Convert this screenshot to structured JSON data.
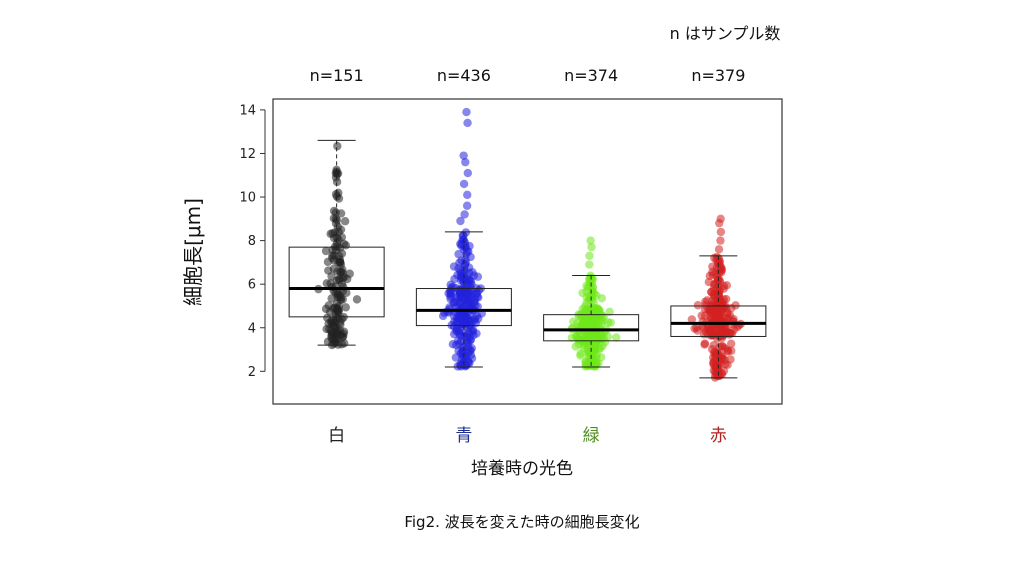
{
  "note": "n はサンプル数",
  "caption": "Fig2. 波長を変えた時の細胞長変化",
  "chart_data": {
    "type": "box",
    "xlabel": "培養時の光色",
    "ylabel": "細胞長[μm]",
    "ylim": [
      0.5,
      14.5
    ],
    "yticks": [
      2,
      4,
      6,
      8,
      10,
      12,
      14
    ],
    "groups": [
      {
        "label": "白",
        "n_label": "n=151",
        "color": "#222222",
        "min": 3.2,
        "q1": 4.5,
        "median": 5.8,
        "q3": 7.7,
        "max": 12.6,
        "spread": 0.55
      },
      {
        "label": "青",
        "n_label": "n=436",
        "color": "#2222dd",
        "min": 2.2,
        "q1": 4.1,
        "median": 4.8,
        "q3": 5.8,
        "max": 8.4,
        "outliers": [
          8.9,
          9.2,
          9.6,
          10.1,
          10.6,
          11.1,
          11.6,
          11.9,
          13.4,
          13.9
        ],
        "spread": 0.75
      },
      {
        "label": "緑",
        "n_label": "n=374",
        "color": "#6fe81a",
        "min": 2.2,
        "q1": 3.4,
        "median": 3.9,
        "q3": 4.6,
        "max": 6.4,
        "outliers": [
          6.9,
          7.3,
          7.7,
          8.0
        ],
        "spread": 0.8
      },
      {
        "label": "赤",
        "n_label": "n=379",
        "color": "#d42020",
        "min": 1.7,
        "q1": 3.6,
        "median": 4.2,
        "q3": 5.0,
        "max": 7.3,
        "outliers": [
          7.6,
          8.0,
          8.4,
          8.8,
          9.0
        ],
        "spread": 0.8
      }
    ],
    "tick_label_colors": [
      "#222222",
      "#1f2f8f",
      "#4f8f1f",
      "#b52020"
    ]
  }
}
